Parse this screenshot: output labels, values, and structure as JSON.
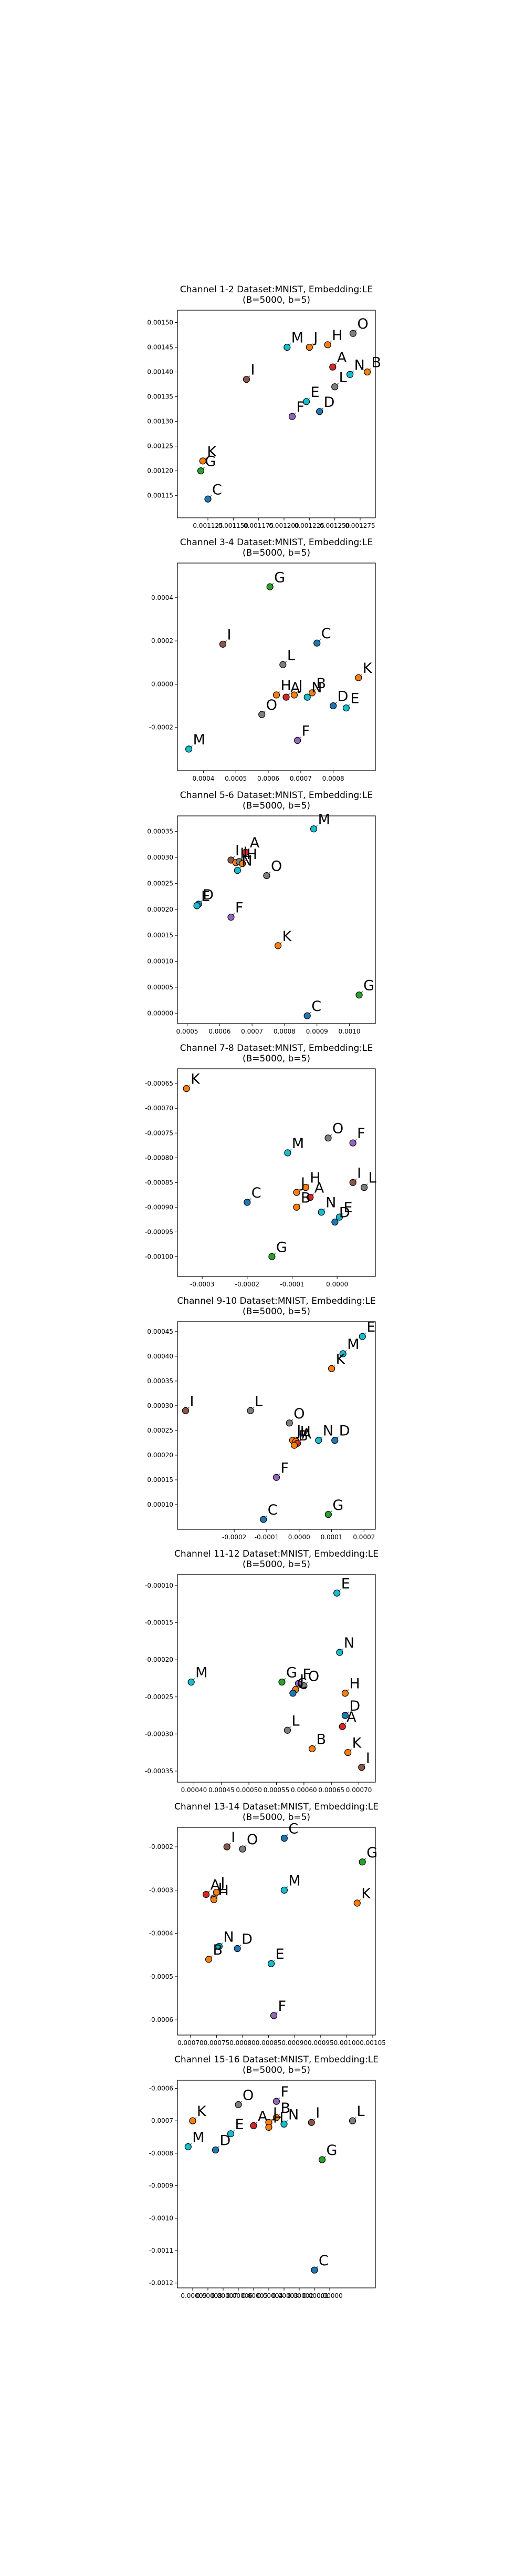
{
  "colors": {
    "A": "#d62728",
    "B": "#ff7f0e",
    "C": "#1f77b4",
    "D": "#1f77b4",
    "E": "#17becf",
    "F": "#9467bd",
    "G": "#2ca02c",
    "H": "#ff7f0e",
    "I": "#8c564b",
    "J": "#ff7f0e",
    "K": "#ff7f0e",
    "L": "#7f7f7f",
    "M": "#17becf",
    "N": "#17becf",
    "O": "#7f7f7f"
  },
  "chart_data": [
    {
      "type": "scatter",
      "title_lines": [
        "Channel 1-2 Dataset:MNIST, Embedding:LE",
        "(B=5000, b=5)"
      ],
      "xlim": [
        0.001095,
        0.00129
      ],
      "ylim": [
        0.001105,
        0.001525
      ],
      "xticks": [
        "0.001125",
        "0.001150",
        "0.001175",
        "0.001200",
        "0.001225",
        "0.001250",
        "0.001275"
      ],
      "xtick_values": [
        0.001125,
        0.00115,
        0.001175,
        0.0012,
        0.001225,
        0.00125,
        0.001275
      ],
      "yticks": [
        "0.00115",
        "0.00120",
        "0.00125",
        "0.00130",
        "0.00135",
        "0.00140",
        "0.00145",
        "0.00150"
      ],
      "ytick_values": [
        0.00115,
        0.0012,
        0.00125,
        0.0013,
        0.00135,
        0.0014,
        0.00145,
        0.0015
      ],
      "points": [
        {
          "label": "O",
          "x": 0.001268,
          "y": 0.001478
        },
        {
          "label": "M",
          "x": 0.001203,
          "y": 0.00145
        },
        {
          "label": "J",
          "x": 0.001225,
          "y": 0.00145
        },
        {
          "label": "H",
          "x": 0.001243,
          "y": 0.001455
        },
        {
          "label": "A",
          "x": 0.001248,
          "y": 0.00141
        },
        {
          "label": "B",
          "x": 0.001282,
          "y": 0.0014
        },
        {
          "label": "N",
          "x": 0.001265,
          "y": 0.001395
        },
        {
          "label": "I",
          "x": 0.001163,
          "y": 0.001385
        },
        {
          "label": "L",
          "x": 0.00125,
          "y": 0.00137
        },
        {
          "label": "E",
          "x": 0.001222,
          "y": 0.00134
        },
        {
          "label": "D",
          "x": 0.001235,
          "y": 0.00132
        },
        {
          "label": "F",
          "x": 0.001208,
          "y": 0.00131
        },
        {
          "label": "K",
          "x": 0.00112,
          "y": 0.00122
        },
        {
          "label": "G",
          "x": 0.001118,
          "y": 0.0012
        },
        {
          "label": "C",
          "x": 0.001125,
          "y": 0.001143
        }
      ]
    },
    {
      "type": "scatter",
      "title_lines": [
        "Channel 3-4 Dataset:MNIST, Embedding:LE",
        "(B=5000, b=5)"
      ],
      "xlim": [
        0.00032,
        0.00093
      ],
      "ylim": [
        -0.0004,
        0.00056
      ],
      "xticks": [
        "0.0004",
        "0.0005",
        "0.0006",
        "0.0007",
        "0.0008"
      ],
      "xtick_values": [
        0.0004,
        0.0005,
        0.0006,
        0.0007,
        0.0008
      ],
      "yticks": [
        "-0.0002",
        "0.0000",
        "0.0002",
        "0.0004"
      ],
      "ytick_values": [
        -0.0002,
        0.0,
        0.0002,
        0.0004
      ],
      "points": [
        {
          "label": "G",
          "x": 0.000605,
          "y": 0.00045
        },
        {
          "label": "C",
          "x": 0.00075,
          "y": 0.00019
        },
        {
          "label": "I",
          "x": 0.00046,
          "y": 0.000185
        },
        {
          "label": "L",
          "x": 0.000645,
          "y": 9e-05
        },
        {
          "label": "K",
          "x": 0.000878,
          "y": 3e-05
        },
        {
          "label": "H",
          "x": 0.000625,
          "y": -5e-05
        },
        {
          "label": "A",
          "x": 0.000655,
          "y": -6e-05
        },
        {
          "label": "B",
          "x": 0.000735,
          "y": -4e-05
        },
        {
          "label": "N",
          "x": 0.00072,
          "y": -6e-05
        },
        {
          "label": "J",
          "x": 0.00068,
          "y": -5e-05
        },
        {
          "label": "E",
          "x": 0.00084,
          "y": -0.00011
        },
        {
          "label": "D",
          "x": 0.0008,
          "y": -0.0001
        },
        {
          "label": "O",
          "x": 0.00058,
          "y": -0.00014
        },
        {
          "label": "F",
          "x": 0.00069,
          "y": -0.00026
        },
        {
          "label": "M",
          "x": 0.000355,
          "y": -0.0003
        }
      ]
    },
    {
      "type": "scatter",
      "title_lines": [
        "Channel 5-6 Dataset:MNIST, Embedding:LE",
        "(B=5000, b=5)"
      ],
      "xlim": [
        0.00047,
        0.00108
      ],
      "ylim": [
        -2e-05,
        0.00038
      ],
      "xticks": [
        "0.0005",
        "0.0006",
        "0.0007",
        "0.0008",
        "0.0009",
        "0.0010"
      ],
      "xtick_values": [
        0.0005,
        0.0006,
        0.0007,
        0.0008,
        0.0009,
        0.001
      ],
      "yticks": [
        "0.00000",
        "0.00005",
        "0.00010",
        "0.00015",
        "0.00020",
        "0.00025",
        "0.00030",
        "0.00035"
      ],
      "ytick_values": [
        0.0,
        5e-05,
        0.0001,
        0.00015,
        0.0002,
        0.00025,
        0.0003,
        0.00035
      ],
      "points": [
        {
          "label": "M",
          "x": 0.00089,
          "y": 0.000355
        },
        {
          "label": "A",
          "x": 0.00068,
          "y": 0.00031
        },
        {
          "label": "I",
          "x": 0.000635,
          "y": 0.000295
        },
        {
          "label": "J",
          "x": 0.00065,
          "y": 0.00029
        },
        {
          "label": "L",
          "x": 0.00066,
          "y": 0.000292
        },
        {
          "label": "H",
          "x": 0.00067,
          "y": 0.000288
        },
        {
          "label": "N",
          "x": 0.000655,
          "y": 0.000275
        },
        {
          "label": "O",
          "x": 0.000745,
          "y": 0.000265
        },
        {
          "label": "D",
          "x": 0.000535,
          "y": 0.00021
        },
        {
          "label": "E",
          "x": 0.00053,
          "y": 0.000207
        },
        {
          "label": "F",
          "x": 0.000635,
          "y": 0.000185
        },
        {
          "label": "K",
          "x": 0.00078,
          "y": 0.00013
        },
        {
          "label": "G",
          "x": 0.00103,
          "y": 3.5e-05
        },
        {
          "label": "C",
          "x": 0.00087,
          "y": -5e-06
        }
      ]
    },
    {
      "type": "scatter",
      "title_lines": [
        "Channel 7-8 Dataset:MNIST, Embedding:LE",
        "(B=5000, b=5)"
      ],
      "xlim": [
        -0.000355,
        8.5e-05
      ],
      "ylim": [
        -0.00104,
        -0.00062
      ],
      "xticks": [
        "-0.0003",
        "-0.0002",
        "-0.0001",
        "0.0000"
      ],
      "xtick_values": [
        -0.0003,
        -0.0002,
        -0.0001,
        0.0
      ],
      "yticks": [
        "-0.00100",
        "-0.00095",
        "-0.00090",
        "-0.00085",
        "-0.00080",
        "-0.00075",
        "-0.00070",
        "-0.00065"
      ],
      "ytick_values": [
        -0.001,
        -0.00095,
        -0.0009,
        -0.00085,
        -0.0008,
        -0.00075,
        -0.0007,
        -0.00065
      ],
      "points": [
        {
          "label": "K",
          "x": -0.000335,
          "y": -0.00066
        },
        {
          "label": "F",
          "x": 3.5e-05,
          "y": -0.00077
        },
        {
          "label": "O",
          "x": -2e-05,
          "y": -0.00076
        },
        {
          "label": "M",
          "x": -0.00011,
          "y": -0.00079
        },
        {
          "label": "I",
          "x": 3.5e-05,
          "y": -0.00085
        },
        {
          "label": "L",
          "x": 6e-05,
          "y": -0.00086
        },
        {
          "label": "H",
          "x": -7e-05,
          "y": -0.00086
        },
        {
          "label": "J",
          "x": -9e-05,
          "y": -0.00087
        },
        {
          "label": "A",
          "x": -6e-05,
          "y": -0.00088
        },
        {
          "label": "B",
          "x": -9e-05,
          "y": -0.0009
        },
        {
          "label": "N",
          "x": -3.5e-05,
          "y": -0.00091
        },
        {
          "label": "E",
          "x": 5e-06,
          "y": -0.00092
        },
        {
          "label": "D",
          "x": -5e-06,
          "y": -0.00093
        },
        {
          "label": "C",
          "x": -0.0002,
          "y": -0.00089
        },
        {
          "label": "G",
          "x": -0.000145,
          "y": -0.001
        }
      ]
    },
    {
      "type": "scatter",
      "title_lines": [
        "Channel 9-10 Dataset:MNIST, Embedding:LE",
        "(B=5000, b=5)"
      ],
      "xlim": [
        -0.000375,
        0.000235
      ],
      "ylim": [
        5e-05,
        0.00047
      ],
      "xticks": [
        "-0.0002",
        "-0.0001",
        "0.0000",
        "0.0001",
        "0.0002"
      ],
      "xtick_values": [
        -0.0002,
        -0.0001,
        0.0,
        0.0001,
        0.0002
      ],
      "yticks": [
        "0.00010",
        "0.00015",
        "0.00020",
        "0.00025",
        "0.00030",
        "0.00035",
        "0.00040",
        "0.00045"
      ],
      "ytick_values": [
        0.0001,
        0.00015,
        0.0002,
        0.00025,
        0.0003,
        0.00035,
        0.0004,
        0.00045
      ],
      "points": [
        {
          "label": "E",
          "x": 0.000195,
          "y": 0.00044
        },
        {
          "label": "M",
          "x": 0.000135,
          "y": 0.000405
        },
        {
          "label": "K",
          "x": 0.0001,
          "y": 0.000375
        },
        {
          "label": "I",
          "x": -0.00035,
          "y": 0.00029
        },
        {
          "label": "L",
          "x": -0.00015,
          "y": 0.00029
        },
        {
          "label": "O",
          "x": -3e-05,
          "y": 0.000265
        },
        {
          "label": "J",
          "x": -2e-05,
          "y": 0.00023
        },
        {
          "label": "H",
          "x": -1e-05,
          "y": 0.000228
        },
        {
          "label": "A",
          "x": -5e-06,
          "y": 0.000224
        },
        {
          "label": "B",
          "x": -1.5e-05,
          "y": 0.00022
        },
        {
          "label": "N",
          "x": 6e-05,
          "y": 0.00023
        },
        {
          "label": "D",
          "x": 0.00011,
          "y": 0.00023
        },
        {
          "label": "F",
          "x": -7e-05,
          "y": 0.000155
        },
        {
          "label": "G",
          "x": 9e-05,
          "y": 8e-05
        },
        {
          "label": "C",
          "x": -0.00011,
          "y": 7e-05
        }
      ]
    },
    {
      "type": "scatter",
      "title_lines": [
        "Channel 11-12 Dataset:MNIST, Embedding:LE",
        "(B=5000, b=5)"
      ],
      "xlim": [
        0.00037,
        0.00073
      ],
      "ylim": [
        -0.000365,
        -8.5e-05
      ],
      "xticks": [
        "0.00040",
        "0.00045",
        "0.00050",
        "0.00055",
        "0.00060",
        "0.00065",
        "0.00070"
      ],
      "xtick_values": [
        0.0004,
        0.00045,
        0.0005,
        0.00055,
        0.0006,
        0.00065,
        0.0007
      ],
      "yticks": [
        "-0.00035",
        "-0.00030",
        "-0.00025",
        "-0.00020",
        "-0.00015",
        "-0.00010"
      ],
      "ytick_values": [
        -0.00035,
        -0.0003,
        -0.00025,
        -0.0002,
        -0.00015,
        -0.0001
      ],
      "points": [
        {
          "label": "E",
          "x": 0.00066,
          "y": -0.00011
        },
        {
          "label": "N",
          "x": 0.000665,
          "y": -0.00019
        },
        {
          "label": "M",
          "x": 0.000395,
          "y": -0.00023
        },
        {
          "label": "G",
          "x": 0.00056,
          "y": -0.00023
        },
        {
          "label": "F",
          "x": 0.00059,
          "y": -0.000232
        },
        {
          "label": "O",
          "x": 0.0006,
          "y": -0.000235
        },
        {
          "label": "J",
          "x": 0.000585,
          "y": -0.00024
        },
        {
          "label": "C",
          "x": 0.00058,
          "y": -0.000245
        },
        {
          "label": "H",
          "x": 0.000675,
          "y": -0.000245
        },
        {
          "label": "D",
          "x": 0.000675,
          "y": -0.000275
        },
        {
          "label": "A",
          "x": 0.00067,
          "y": -0.00029
        },
        {
          "label": "L",
          "x": 0.00057,
          "y": -0.000295
        },
        {
          "label": "B",
          "x": 0.000615,
          "y": -0.00032
        },
        {
          "label": "K",
          "x": 0.00068,
          "y": -0.000325
        },
        {
          "label": "I",
          "x": 0.000705,
          "y": -0.000345
        }
      ]
    },
    {
      "type": "scatter",
      "title_lines": [
        "Channel 13-14 Dataset:MNIST, Embedding:LE",
        "(B=5000, b=5)"
      ],
      "xlim": [
        0.000675,
        0.001055
      ],
      "ylim": [
        -0.000635,
        -0.000155
      ],
      "xticks": [
        "0.00070",
        "0.00075",
        "0.00080",
        "0.00085",
        "0.00090",
        "0.00095",
        "0.00100",
        "0.00105"
      ],
      "xtick_values": [
        0.0007,
        0.00075,
        0.0008,
        0.00085,
        0.0009,
        0.00095,
        0.001,
        0.00105
      ],
      "yticks": [
        "-0.0006",
        "-0.0005",
        "-0.0004",
        "-0.0003",
        "-0.0002"
      ],
      "ytick_values": [
        -0.0006,
        -0.0005,
        -0.0004,
        -0.0003,
        -0.0002
      ],
      "points": [
        {
          "label": "C",
          "x": 0.00088,
          "y": -0.00018
        },
        {
          "label": "I",
          "x": 0.00077,
          "y": -0.0002
        },
        {
          "label": "O",
          "x": 0.0008,
          "y": -0.000205
        },
        {
          "label": "G",
          "x": 0.00103,
          "y": -0.000235
        },
        {
          "label": "M",
          "x": 0.00088,
          "y": -0.0003
        },
        {
          "label": "J",
          "x": 0.00075,
          "y": -0.000305
        },
        {
          "label": "A",
          "x": 0.00073,
          "y": -0.00031
        },
        {
          "label": "L",
          "x": 0.000745,
          "y": -0.000318
        },
        {
          "label": "H",
          "x": 0.000745,
          "y": -0.000322
        },
        {
          "label": "K",
          "x": 0.00102,
          "y": -0.00033
        },
        {
          "label": "N",
          "x": 0.000755,
          "y": -0.00043
        },
        {
          "label": "D",
          "x": 0.00079,
          "y": -0.000435
        },
        {
          "label": "B",
          "x": 0.000735,
          "y": -0.00046
        },
        {
          "label": "E",
          "x": 0.000855,
          "y": -0.00047
        },
        {
          "label": "F",
          "x": 0.00086,
          "y": -0.00059
        }
      ]
    },
    {
      "type": "scatter",
      "title_lines": [
        "Channel 15-16 Dataset:MNIST, Embedding:LE",
        "(B=5000, b=5)"
      ],
      "xlim": [
        -0.0001,
        3e-05
      ],
      "ylim": [
        -0.001215,
        -0.000575
      ],
      "xticks": [
        "-0.00009",
        "-0.00008",
        "-0.00007",
        "-0.00006",
        "-0.00005",
        "-0.00004",
        "-0.00003",
        "-0.00002",
        "-0.00001",
        "0.00000"
      ],
      "xtick_values": [
        -9e-05,
        -8e-05,
        -7e-05,
        -6e-05,
        -5e-05,
        -4e-05,
        -3e-05,
        -2e-05,
        -1e-05,
        0.0
      ],
      "yticks": [
        "-0.0006",
        "-0.0007",
        "-0.0008",
        "-0.0009",
        "-0.0010",
        "-0.0011",
        "-0.0012"
      ],
      "ytick_values": [
        -0.0006,
        -0.0007,
        -0.0008,
        -0.0009,
        -0.001,
        -0.0011,
        -0.0012
      ],
      "points": [
        {
          "label": "F",
          "x": -3.5e-05,
          "y": -0.00064
        },
        {
          "label": "O",
          "x": -6e-05,
          "y": -0.00065
        },
        {
          "label": "B",
          "x": -3.5e-05,
          "y": -0.00069
        },
        {
          "label": "L",
          "x": 1.5e-05,
          "y": -0.0007
        },
        {
          "label": "K",
          "x": -9e-05,
          "y": -0.0007
        },
        {
          "label": "I",
          "x": -1.2e-05,
          "y": -0.000705
        },
        {
          "label": "J",
          "x": -4e-05,
          "y": -0.000705
        },
        {
          "label": "N",
          "x": -3e-05,
          "y": -0.00071
        },
        {
          "label": "A",
          "x": -5e-05,
          "y": -0.000715
        },
        {
          "label": "H",
          "x": -4e-05,
          "y": -0.00072
        },
        {
          "label": "E",
          "x": -6.5e-05,
          "y": -0.00074
        },
        {
          "label": "M",
          "x": -9.3e-05,
          "y": -0.00078
        },
        {
          "label": "D",
          "x": -7.5e-05,
          "y": -0.00079
        },
        {
          "label": "G",
          "x": -5e-06,
          "y": -0.00082
        },
        {
          "label": "C",
          "x": -1e-05,
          "y": -0.00116
        }
      ]
    }
  ]
}
